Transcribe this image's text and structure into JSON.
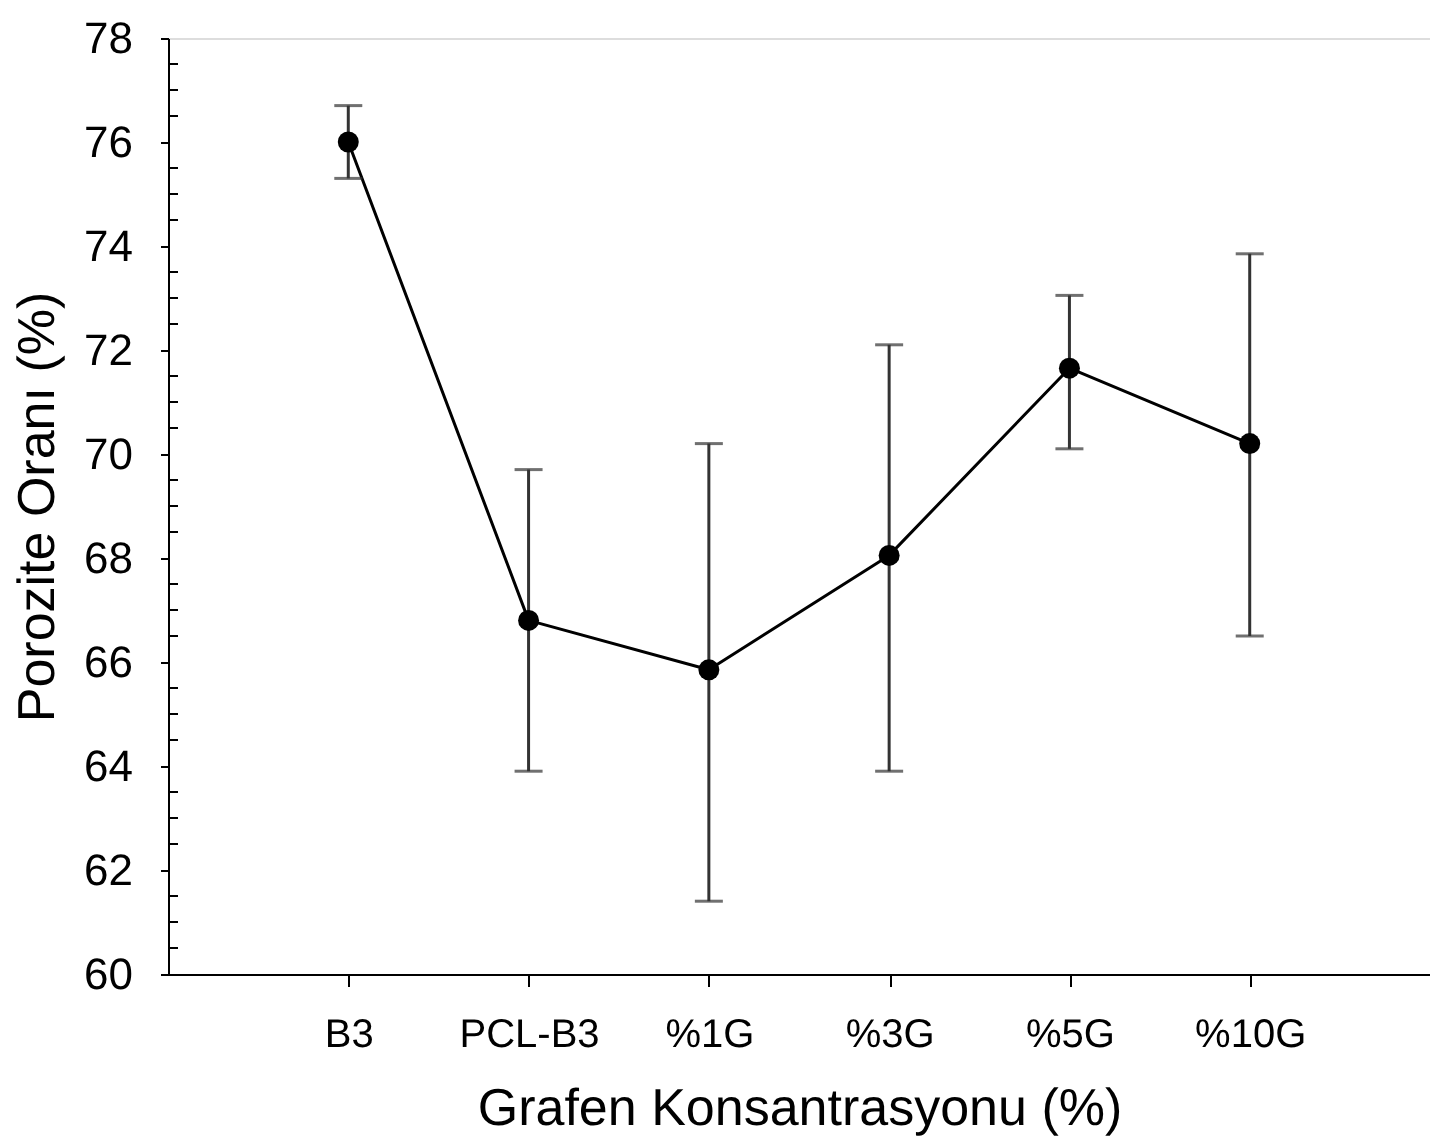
{
  "chart_data": {
    "type": "line",
    "xlabel": "Grafen Konsantrasyonu (%)",
    "ylabel": "Porozite Oranı (%)",
    "categories": [
      "B3",
      "PCL-B3",
      "%1G",
      "%3G",
      "%5G",
      "%10G"
    ],
    "series": [
      {
        "color": "#000000",
        "values": [
          76.0,
          66.8,
          65.85,
          68.05,
          71.65,
          70.2
        ],
        "errors": [
          [
            75.3,
            76.7
          ],
          [
            63.9,
            69.7
          ],
          [
            61.4,
            70.2
          ],
          [
            63.9,
            72.1
          ],
          [
            70.1,
            73.05
          ],
          [
            66.5,
            73.85
          ]
        ]
      }
    ],
    "ylim": [
      60,
      78
    ],
    "yticks": [
      60,
      {
        "value": 60.5,
        "label": null
      },
      {
        "value": 61,
        "label": null
      },
      {
        "value": 61.5,
        "label": null
      },
      62,
      {
        "value": 62.5,
        "label": null
      },
      {
        "value": 63,
        "label": null
      },
      {
        "value": 63.5,
        "label": null
      },
      64,
      {
        "value": 64.5,
        "label": null
      },
      {
        "value": 65,
        "label": null
      },
      {
        "value": 65.5,
        "label": null
      },
      66,
      {
        "value": 66.5,
        "label": null
      },
      {
        "value": 67,
        "label": null
      },
      {
        "value": 67.5,
        "label": null
      },
      68,
      {
        "value": 68.5,
        "label": null
      },
      {
        "value": 69,
        "label": null
      },
      {
        "value": 69.5,
        "label": null
      },
      70,
      {
        "value": 70.5,
        "label": null
      },
      {
        "value": 71,
        "label": null
      },
      {
        "value": 71.5,
        "label": null
      },
      72,
      {
        "value": 72.5,
        "label": null
      },
      {
        "value": 73,
        "label": null
      },
      {
        "value": 73.5,
        "label": null
      },
      74,
      {
        "value": 74.5,
        "label": null
      },
      {
        "value": 75,
        "label": null
      },
      {
        "value": 75.5,
        "label": null
      },
      76,
      {
        "value": 76.5,
        "label": null
      },
      {
        "value": 77,
        "label": null
      },
      {
        "value": 77.5,
        "label": null
      },
      78
    ],
    "grid": false,
    "marker": "circle",
    "line_style": "solid"
  }
}
